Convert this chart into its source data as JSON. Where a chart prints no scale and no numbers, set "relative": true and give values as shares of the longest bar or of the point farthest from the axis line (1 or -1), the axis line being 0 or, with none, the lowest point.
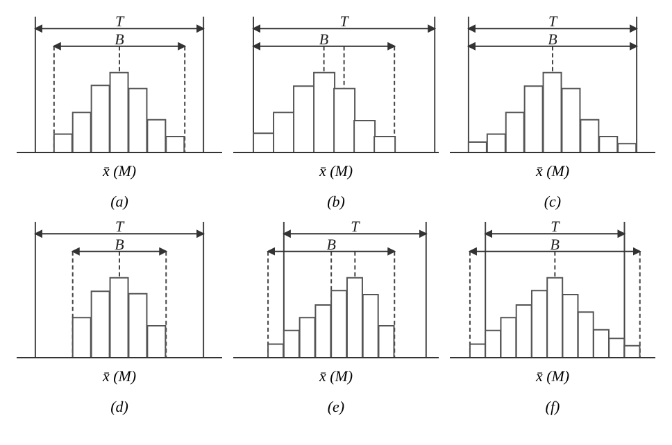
{
  "chart_data": [
    {
      "type": "bar",
      "title": "(a)",
      "xlabel": "x̄ (M)",
      "relative": true,
      "color": "#ffffff",
      "categories": [
        null,
        null,
        null,
        null,
        null,
        null,
        null
      ],
      "values": [
        0.23,
        0.5,
        0.84,
        1,
        0.8,
        0.41,
        0.2
      ],
      "annotations": [
        "T",
        "B"
      ]
    },
    {
      "type": "bar",
      "title": "(b)",
      "xlabel": "x̄ (M)",
      "relative": true,
      "color": "#ffffff",
      "categories": [
        null,
        null,
        null,
        null,
        null,
        null,
        null
      ],
      "values": [
        0.24,
        0.5,
        0.83,
        1,
        0.8,
        0.4,
        0.2
      ],
      "annotations": [
        "T",
        "B"
      ]
    },
    {
      "type": "bar",
      "title": "(c)",
      "xlabel": "x̄ (M)",
      "relative": true,
      "color": "#ffffff",
      "categories": [
        null,
        null,
        null,
        null,
        null,
        null,
        null,
        null,
        null
      ],
      "values": [
        0.13,
        0.23,
        0.5,
        0.83,
        1,
        0.8,
        0.41,
        0.2,
        0.11
      ],
      "annotations": [
        "T",
        "B"
      ]
    },
    {
      "type": "bar",
      "title": "(d)",
      "xlabel": "x̄ (M)",
      "relative": true,
      "color": "#ffffff",
      "categories": [
        null,
        null,
        null,
        null,
        null
      ],
      "values": [
        0.5,
        0.83,
        1,
        0.8,
        0.4
      ],
      "annotations": [
        "T",
        "B"
      ]
    },
    {
      "type": "bar",
      "title": "(e)",
      "xlabel": "x̄ (M)",
      "relative": true,
      "color": "#ffffff",
      "categories": [
        null,
        null,
        null,
        null,
        null,
        null,
        null,
        null
      ],
      "values": [
        0.17,
        0.34,
        0.5,
        0.66,
        0.84,
        1,
        0.79,
        0.4
      ],
      "annotations": [
        "T",
        "B"
      ]
    },
    {
      "type": "bar",
      "title": "(f)",
      "xlabel": "x̄ (M)",
      "relative": true,
      "color": "#ffffff",
      "categories": [
        null,
        null,
        null,
        null,
        null,
        null,
        null,
        null,
        null,
        null,
        null
      ],
      "values": [
        0.17,
        0.34,
        0.5,
        0.66,
        0.84,
        1,
        0.79,
        0.57,
        0.35,
        0.24,
        0.15
      ],
      "annotations": [
        "T",
        "B"
      ]
    }
  ]
}
